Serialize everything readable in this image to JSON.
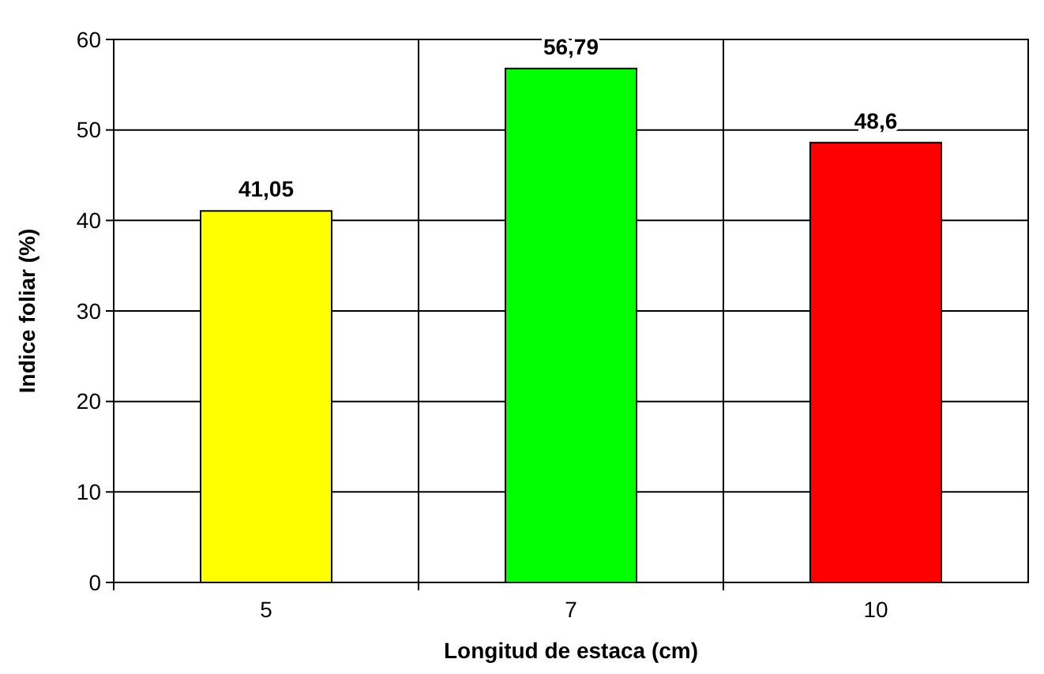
{
  "chart_data": {
    "type": "bar",
    "xlabel": "Longitud de estaca (cm)",
    "ylabel": "Indice foliar (%)",
    "categories": [
      "5",
      "7",
      "10"
    ],
    "values": [
      41.05,
      56.79,
      48.6
    ],
    "colors": [
      "#ffff00",
      "#00ff00",
      "#ff0000"
    ],
    "value_labels": [
      "41,05",
      "56,79",
      "48,6"
    ],
    "ylim": [
      0,
      60
    ],
    "yticks": [
      0,
      10,
      20,
      30,
      40,
      50,
      60
    ],
    "grid": true
  }
}
